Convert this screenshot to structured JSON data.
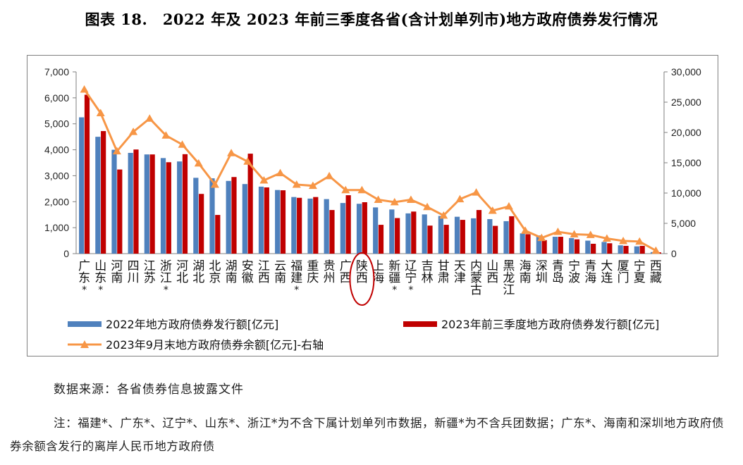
{
  "title": "图表 18.　2022 年及 2023 年前三季度各省(含计划单列市)地方政府债券发行情况",
  "source": "数据来源：各省债券信息披露文件",
  "note": "注：福建*、广东*、辽宁*、山东*、浙江*为不含下属计划单列市数据，新疆*为不含兵团数据；广东*、海南和深圳地方政府债券余额含发行的离岸人民币地方政府债",
  "chart_data": {
    "type": "bar",
    "categories": [
      "广东*",
      "山东*",
      "河南",
      "四川",
      "江苏",
      "浙江*",
      "河北",
      "湖北",
      "北京",
      "湖南",
      "安徽",
      "江西",
      "云南",
      "福建*",
      "重庆",
      "贵州",
      "广西",
      "陕西",
      "上海",
      "新疆*",
      "辽宁*",
      "吉林",
      "甘肃",
      "天津",
      "内蒙古",
      "山西",
      "黑龙江",
      "海南",
      "深圳",
      "青岛",
      "宁波",
      "青海",
      "大连",
      "厦门",
      "宁夏",
      "西藏"
    ],
    "category_lines": [
      [
        "广",
        "东",
        "*"
      ],
      [
        "山",
        "东",
        "*"
      ],
      [
        "河",
        "南"
      ],
      [
        "四",
        "川"
      ],
      [
        "江",
        "苏"
      ],
      [
        "浙",
        "江",
        "*"
      ],
      [
        "河",
        "北"
      ],
      [
        "湖",
        "北"
      ],
      [
        "北",
        "京"
      ],
      [
        "湖",
        "南"
      ],
      [
        "安",
        "徽"
      ],
      [
        "江",
        "西"
      ],
      [
        "云",
        "南"
      ],
      [
        "福",
        "建",
        "*"
      ],
      [
        "重",
        "庆"
      ],
      [
        "贵",
        "州"
      ],
      [
        "广",
        "西"
      ],
      [
        "陕",
        "西"
      ],
      [
        "上",
        "海"
      ],
      [
        "新",
        "疆",
        "*"
      ],
      [
        "辽",
        "宁",
        "*"
      ],
      [
        "吉",
        "林"
      ],
      [
        "甘",
        "肃"
      ],
      [
        "天",
        "津"
      ],
      [
        "内",
        "蒙",
        "古"
      ],
      [
        "山",
        "西"
      ],
      [
        "黑",
        "龙",
        "江"
      ],
      [
        "海",
        "南"
      ],
      [
        "深",
        "圳"
      ],
      [
        "青",
        "岛"
      ],
      [
        "宁",
        "波"
      ],
      [
        "青",
        "海"
      ],
      [
        "大",
        "连"
      ],
      [
        "厦",
        "门"
      ],
      [
        "宁",
        "夏"
      ],
      [
        "西",
        "藏"
      ]
    ],
    "series": [
      {
        "name": "2022年地方政府债券发行额[亿元]",
        "axis": "left",
        "kind": "bar",
        "color": "#4f81bd",
        "values": [
          5250,
          4500,
          4000,
          3880,
          3820,
          3680,
          3550,
          2920,
          2900,
          2800,
          2680,
          2580,
          2450,
          2180,
          2120,
          2100,
          1950,
          1920,
          1780,
          1700,
          1550,
          1510,
          1450,
          1420,
          1360,
          1330,
          1250,
          780,
          700,
          650,
          600,
          500,
          450,
          320,
          280,
          60
        ]
      },
      {
        "name": "2023年前三季度地方政府债券发行额[亿元]",
        "axis": "left",
        "kind": "bar",
        "color": "#c00000",
        "values": [
          6120,
          4720,
          3240,
          4010,
          3820,
          3520,
          3830,
          2300,
          1490,
          2950,
          3850,
          2550,
          2440,
          2150,
          2180,
          1680,
          2250,
          1980,
          1110,
          1370,
          1620,
          1080,
          1110,
          1300,
          1680,
          1070,
          1440,
          750,
          520,
          650,
          550,
          380,
          400,
          300,
          300,
          50
        ]
      },
      {
        "name": "2023年9月末地方政府债券余额[亿元]-右轴",
        "axis": "right",
        "kind": "line",
        "color": "#f79646",
        "values": [
          27100,
          23200,
          16900,
          20100,
          22300,
          19500,
          18000,
          14900,
          11400,
          16600,
          15200,
          12100,
          13300,
          11400,
          11200,
          12800,
          10500,
          10500,
          8900,
          8500,
          8900,
          7700,
          6300,
          9000,
          10100,
          7100,
          7800,
          3800,
          2600,
          3600,
          3200,
          3100,
          2500,
          2100,
          2000,
          500
        ]
      }
    ],
    "left_axis": {
      "min": 0,
      "max": 7000,
      "ticks": [
        "0",
        "1,000",
        "2,000",
        "3,000",
        "4,000",
        "5,000",
        "6,000",
        "7,000"
      ]
    },
    "right_axis": {
      "min": 0,
      "max": 30000,
      "ticks": [
        "0",
        "5,000",
        "10,000",
        "15,000",
        "20,000",
        "25,000",
        "30,000"
      ]
    },
    "highlight_category": "陕西",
    "legend_position": "bottom"
  }
}
